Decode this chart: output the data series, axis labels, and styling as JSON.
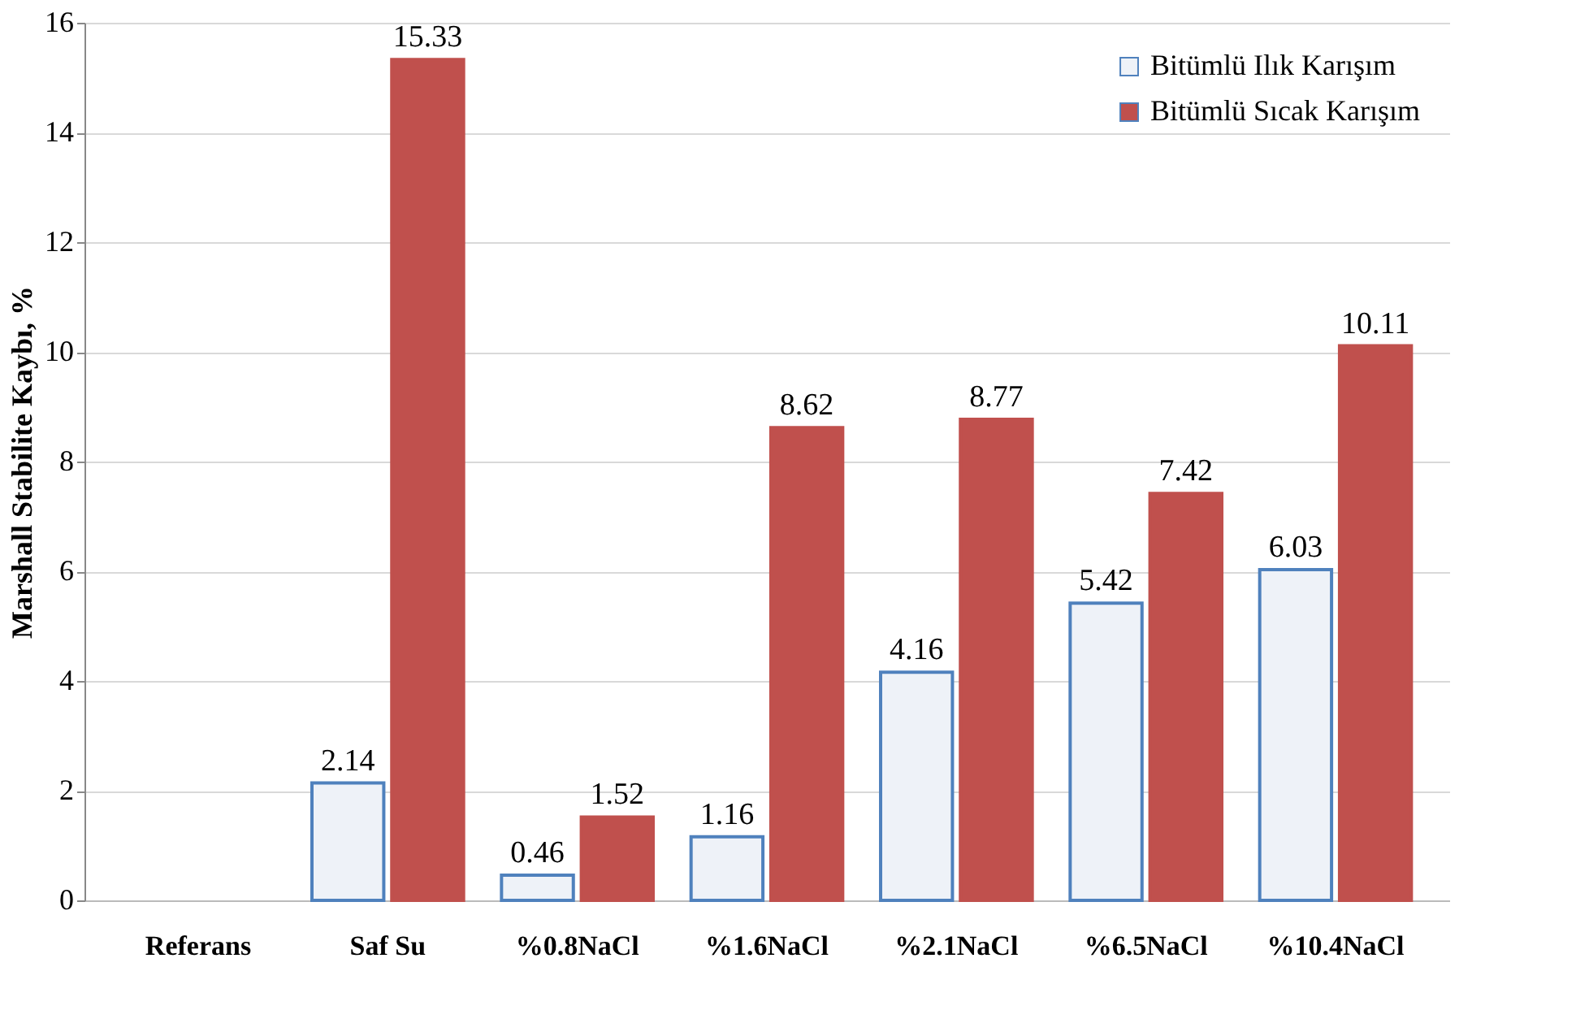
{
  "chart_data": {
    "type": "bar",
    "ylabel": "Marshall Stabilite Kaybı, %",
    "categories": [
      "Referans",
      "Saf  Su",
      "%0.8NaCl",
      "%1.6NaCl",
      "%2.1NaCl",
      "%6.5NaCl",
      "%10.4NaCl"
    ],
    "series": [
      {
        "name": "Bitümlü Ilık Karışım",
        "color": "#eef2f8",
        "values": [
          0,
          2.14,
          0.46,
          1.16,
          4.16,
          5.42,
          6.03
        ],
        "value_labels": [
          null,
          "2.14",
          "0.46",
          "1.16",
          "4.16",
          "5.42",
          "6.03"
        ]
      },
      {
        "name": "Bitümlü Sıcak Karışım",
        "color": "#c0504d",
        "values": [
          0,
          15.33,
          1.52,
          8.62,
          8.77,
          7.42,
          10.11
        ],
        "value_labels": [
          null,
          "15.33",
          "1.52",
          "8.62",
          "8.77",
          "7.42",
          "10.11"
        ]
      }
    ],
    "ylim": [
      0,
      16
    ],
    "yticks": [
      0,
      2,
      4,
      6,
      8,
      10,
      12,
      14,
      16
    ],
    "grid": "y",
    "legend": "top right"
  }
}
